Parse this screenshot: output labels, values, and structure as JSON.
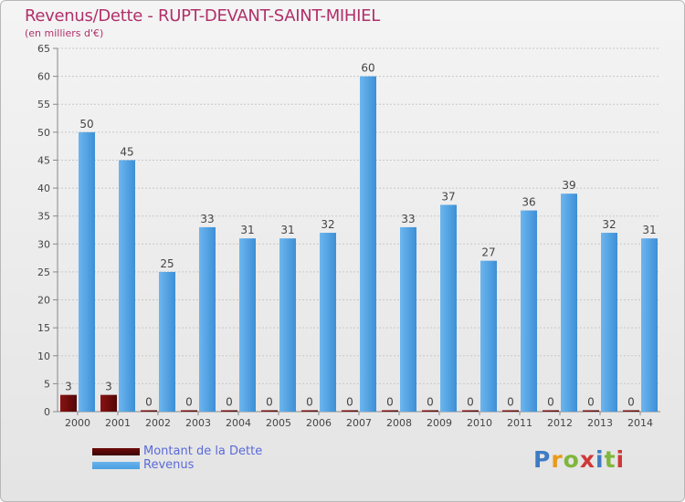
{
  "page": {
    "title": "Revenus/Dette - RUPT-DEVANT-SAINT-MIHIEL",
    "subtitle": "(en milliers d'€)",
    "logo_text": "Proxiti"
  },
  "colors": {
    "title": "#b0306a",
    "dette": "#6e0a0a",
    "revenus": "#4a9ee0",
    "axis": "#888888",
    "grid": "#c8c8c8",
    "label_text": "#444444"
  },
  "chart_data": {
    "type": "bar",
    "title": "Revenus/Dette - RUPT-DEVANT-SAINT-MIHIEL",
    "subtitle": "(en milliers d'€)",
    "xlabel": "",
    "ylabel": "",
    "ylim": [
      0,
      65
    ],
    "yticks": [
      0,
      5,
      10,
      15,
      20,
      25,
      30,
      35,
      40,
      45,
      50,
      55,
      60,
      65
    ],
    "grid": true,
    "categories": [
      "2000",
      "2001",
      "2002",
      "2003",
      "2004",
      "2005",
      "2006",
      "2007",
      "2008",
      "2009",
      "2010",
      "2011",
      "2012",
      "2013",
      "2014"
    ],
    "series": [
      {
        "name": "Montant de la Dette",
        "color": "#6e0a0a",
        "values": [
          3,
          3,
          0,
          0,
          0,
          0,
          0,
          0,
          0,
          0,
          0,
          0,
          0,
          0,
          0
        ]
      },
      {
        "name": "Revenus",
        "color": "#4a9ee0",
        "values": [
          50,
          45,
          25,
          33,
          31,
          31,
          32,
          60,
          33,
          37,
          27,
          36,
          39,
          32,
          31
        ]
      }
    ],
    "legend_position": "bottom-left"
  }
}
